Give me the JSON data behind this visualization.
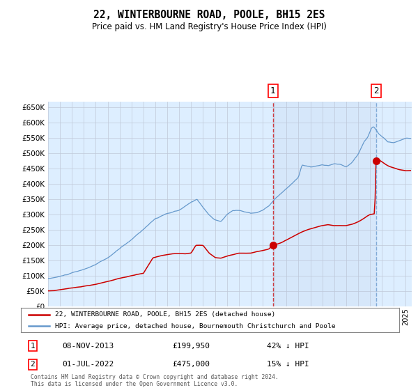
{
  "title": "22, WINTERBOURNE ROAD, POOLE, BH15 2ES",
  "subtitle": "Price paid vs. HM Land Registry's House Price Index (HPI)",
  "legend_label_red": "22, WINTERBOURNE ROAD, POOLE, BH15 2ES (detached house)",
  "legend_label_blue": "HPI: Average price, detached house, Bournemouth Christchurch and Poole",
  "transaction1_label": "08-NOV-2013",
  "transaction1_price": "£199,950",
  "transaction1_pct": "42% ↓ HPI",
  "transaction1_x": 2013.856,
  "transaction1_y": 199950,
  "transaction2_label": "01-JUL-2022",
  "transaction2_price": "£475,000",
  "transaction2_pct": "15% ↓ HPI",
  "transaction2_x": 2022.5,
  "transaction2_y": 475000,
  "footnote": "Contains HM Land Registry data © Crown copyright and database right 2024.\nThis data is licensed under the Open Government Licence v3.0.",
  "red_color": "#cc0000",
  "blue_color": "#6699cc",
  "background_color": "#ddeeff",
  "grid_color": "#c0c8d8",
  "ylim": [
    0,
    670000
  ],
  "yticks": [
    0,
    50000,
    100000,
    150000,
    200000,
    250000,
    300000,
    350000,
    400000,
    450000,
    500000,
    550000,
    600000,
    650000
  ],
  "xmin": 1995.0,
  "xmax": 2025.5
}
